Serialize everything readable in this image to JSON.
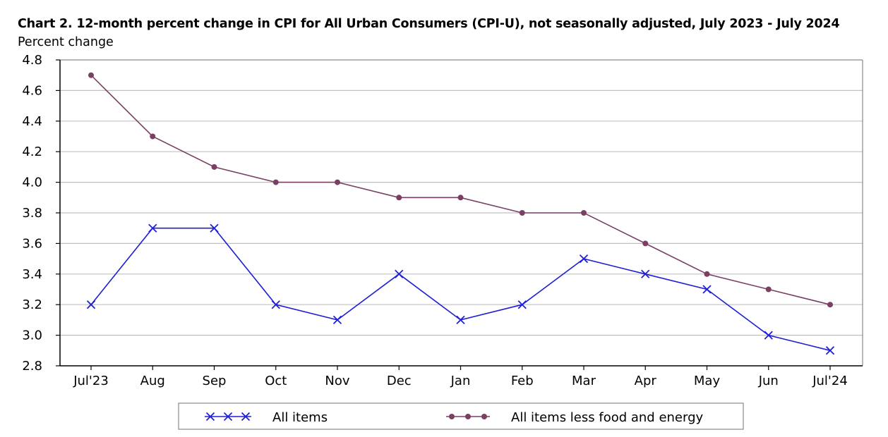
{
  "colors": {
    "all_items": "#1f1fd6",
    "core": "#7b3f63",
    "grid": "#c0c0c0",
    "axis": "#000000",
    "plot_border": "#8a8a8a",
    "legend_border": "#8a8a8a"
  },
  "chart_data": {
    "type": "line",
    "title": "Chart 2. 12-month percent change in CPI for All Urban Consumers (CPI-U), not seasonally adjusted, July 2023 - July 2024",
    "xlabel": "",
    "ylabel": "Percent change",
    "categories": [
      "Jul'23",
      "Aug",
      "Sep",
      "Oct",
      "Nov",
      "Dec",
      "Jan",
      "Feb",
      "Mar",
      "Apr",
      "May",
      "Jun",
      "Jul'24"
    ],
    "ylim": [
      2.8,
      4.8
    ],
    "yticks": [
      "2.8",
      "3.0",
      "3.2",
      "3.4",
      "3.6",
      "3.8",
      "4.0",
      "4.2",
      "4.4",
      "4.6",
      "4.8"
    ],
    "grid": true,
    "legend_position": "bottom",
    "series": [
      {
        "name": "All items",
        "marker": "x",
        "color_key": "all_items",
        "values": [
          3.2,
          3.7,
          3.7,
          3.2,
          3.1,
          3.4,
          3.1,
          3.2,
          3.5,
          3.4,
          3.3,
          3.0,
          2.9
        ]
      },
      {
        "name": "All items less food and energy",
        "marker": "circle",
        "color_key": "core",
        "values": [
          4.7,
          4.3,
          4.1,
          4.0,
          4.0,
          3.9,
          3.9,
          3.8,
          3.8,
          3.6,
          3.4,
          3.3,
          3.2
        ]
      }
    ]
  }
}
